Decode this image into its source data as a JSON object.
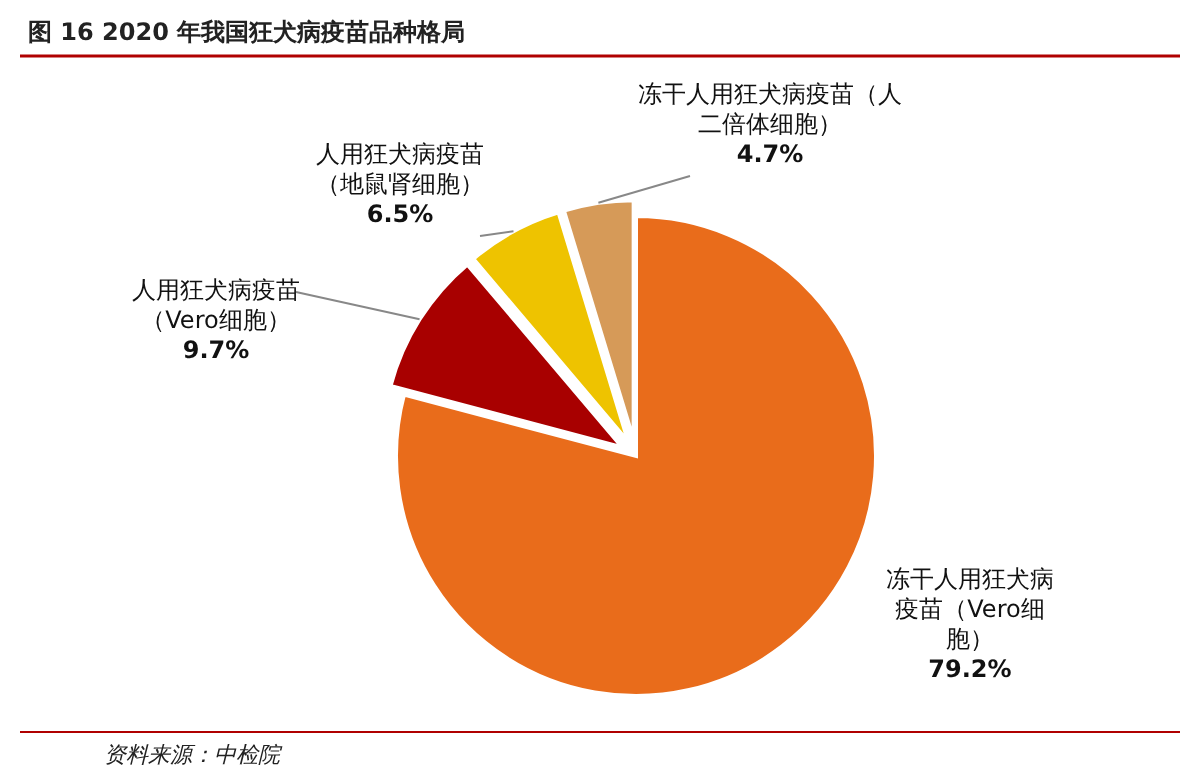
{
  "chart_data": {
    "type": "pie",
    "title": "图 16 2020 年我国狂犬病疫苗品种格局",
    "categories": [
      "冻干人用狂犬病疫苗（Vero细胞）",
      "人用狂犬病疫苗（Vero细胞）",
      "人用狂犬病疫苗（地鼠肾细胞）",
      "冻干人用狂犬病疫苗（人二倍体细胞）"
    ],
    "values": [
      79.2,
      9.7,
      6.5,
      4.7
    ],
    "value_labels": [
      "79.2%",
      "9.7%",
      "6.5%",
      "4.7%"
    ],
    "colors": [
      "#e96c1b",
      "#a80000",
      "#eec300",
      "#d69a58"
    ],
    "annotations": [
      "资料来源：中检院"
    ]
  }
}
